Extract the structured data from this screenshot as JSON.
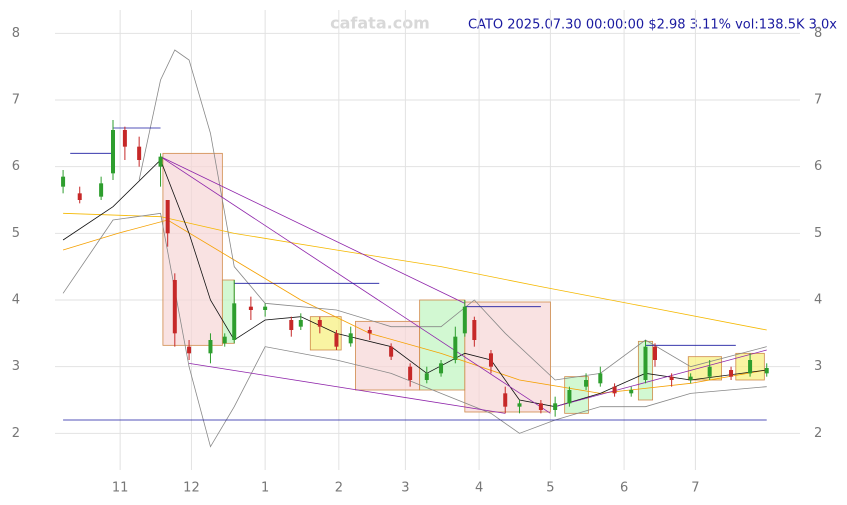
{
  "chart_data": {
    "type": "candlestick",
    "title": "CATO 2025.07.30 00:00:00 $2.98 3.11% vol:138.5K 3.0x",
    "watermark": "cafata.com",
    "up_color": "#2e9e2e",
    "down_color": "#c62828",
    "grid": true,
    "xlim": [
      3.6,
      317
    ],
    "ylim": [
      1.45,
      8.35
    ],
    "xticks": [
      {
        "value": 31,
        "label": "11"
      },
      {
        "value": 61,
        "label": "12"
      },
      {
        "value": 92,
        "label": "1"
      },
      {
        "value": 123,
        "label": "2"
      },
      {
        "value": 151,
        "label": "3"
      },
      {
        "value": 182,
        "label": "4"
      },
      {
        "value": 212,
        "label": "5"
      },
      {
        "value": 243,
        "label": "6"
      },
      {
        "value": 273,
        "label": "7"
      }
    ],
    "yticks": [
      2,
      3,
      4,
      5,
      6,
      7,
      8
    ],
    "x": [
      7,
      14,
      23,
      28,
      33,
      39,
      48,
      51,
      54,
      60,
      69,
      75,
      79,
      86,
      92,
      103,
      107,
      115,
      122,
      128,
      136,
      145,
      153,
      160,
      166,
      172,
      176,
      180,
      187,
      193,
      199,
      208,
      214,
      220,
      227,
      233,
      239,
      246,
      252,
      256,
      263,
      271,
      279,
      288,
      296,
      303
    ],
    "open": [
      5.7,
      5.6,
      5.55,
      5.9,
      6.55,
      6.3,
      6.0,
      5.5,
      4.3,
      3.3,
      3.2,
      3.35,
      3.4,
      3.9,
      3.85,
      3.7,
      3.6,
      3.7,
      3.5,
      3.35,
      3.55,
      3.3,
      3.0,
      2.8,
      2.9,
      3.1,
      3.5,
      3.7,
      3.2,
      2.6,
      2.4,
      2.45,
      2.35,
      2.45,
      2.7,
      2.75,
      2.7,
      2.6,
      2.8,
      3.3,
      2.85,
      2.8,
      2.85,
      2.95,
      2.9,
      2.9
    ],
    "high": [
      5.95,
      5.7,
      5.85,
      6.7,
      6.6,
      6.45,
      6.2,
      5.5,
      4.4,
      3.4,
      3.5,
      3.5,
      4.3,
      4.05,
      3.95,
      3.75,
      3.8,
      3.75,
      3.55,
      3.6,
      3.6,
      3.35,
      3.05,
      3.0,
      3.1,
      3.6,
      4.0,
      3.75,
      3.25,
      2.7,
      2.5,
      2.5,
      2.55,
      2.7,
      2.9,
      3.0,
      2.75,
      2.7,
      3.4,
      3.35,
      2.9,
      2.9,
      3.1,
      3.0,
      3.2,
      3.05
    ],
    "low": [
      5.6,
      5.45,
      5.5,
      5.8,
      6.1,
      6.0,
      5.7,
      4.8,
      3.3,
      3.1,
      3.05,
      3.3,
      3.35,
      3.7,
      3.75,
      3.45,
      3.55,
      3.5,
      3.25,
      3.3,
      3.4,
      3.1,
      2.7,
      2.75,
      2.85,
      3.05,
      3.45,
      3.3,
      2.9,
      2.3,
      2.3,
      2.3,
      2.25,
      2.4,
      2.65,
      2.7,
      2.55,
      2.55,
      2.75,
      3.0,
      2.7,
      2.75,
      2.8,
      2.8,
      2.85,
      2.85
    ],
    "close": [
      5.85,
      5.5,
      5.75,
      6.55,
      6.3,
      6.1,
      6.15,
      5.0,
      3.5,
      3.2,
      3.4,
      3.45,
      3.95,
      3.85,
      3.9,
      3.55,
      3.7,
      3.6,
      3.3,
      3.5,
      3.5,
      3.15,
      2.8,
      2.9,
      3.05,
      3.45,
      3.9,
      3.4,
      3.0,
      2.4,
      2.45,
      2.35,
      2.45,
      2.65,
      2.8,
      2.9,
      2.6,
      2.65,
      3.3,
      3.1,
      2.8,
      2.85,
      3.0,
      2.85,
      3.1,
      2.98
    ],
    "boxes": [
      {
        "x": [
          49,
          74
        ],
        "y": [
          3.32,
          6.2
        ],
        "color": "#f7d6d6"
      },
      {
        "x": [
          74,
          79
        ],
        "y": [
          3.35,
          4.3
        ],
        "color": "#bff5bf"
      },
      {
        "x": [
          111,
          124
        ],
        "y": [
          3.25,
          3.75
        ],
        "color": "#f7f07a"
      },
      {
        "x": [
          130,
          157
        ],
        "y": [
          2.65,
          3.68
        ],
        "color": "#f7d6d6"
      },
      {
        "x": [
          157,
          176
        ],
        "y": [
          2.65,
          4.0
        ],
        "color": "#bff5bf"
      },
      {
        "x": [
          176,
          212
        ],
        "y": [
          2.32,
          3.97
        ],
        "color": "#f7d6d6"
      },
      {
        "x": [
          218,
          228
        ],
        "y": [
          2.3,
          2.85
        ],
        "color": "#bff5bf"
      },
      {
        "x": [
          249,
          255
        ],
        "y": [
          2.5,
          3.38
        ],
        "color": "#bff5bf"
      },
      {
        "x": [
          270,
          284
        ],
        "y": [
          2.8,
          3.15
        ],
        "color": "#f7f07a"
      },
      {
        "x": [
          290,
          302
        ],
        "y": [
          2.8,
          3.2
        ],
        "color": "#f7f07a"
      }
    ],
    "lines": [
      {
        "color": "#f5b800",
        "x": [
          7,
          48,
          79,
          122,
          166,
          208,
          252,
          303
        ],
        "values": [
          5.3,
          5.25,
          5.0,
          4.75,
          4.5,
          4.2,
          3.9,
          3.55
        ]
      },
      {
        "color": "#f5a000",
        "x": [
          7,
          30,
          51,
          79,
          107,
          136,
          166,
          199,
          233,
          271,
          303
        ],
        "values": [
          4.75,
          5.0,
          5.2,
          4.6,
          4.0,
          3.5,
          3.2,
          2.8,
          2.6,
          2.75,
          2.95
        ]
      },
      {
        "color": "#111111",
        "x": [
          7,
          28,
          48,
          60,
          69,
          79,
          92,
          107,
          122,
          145,
          160,
          176,
          187,
          199,
          214,
          233,
          252,
          271,
          303
        ],
        "values": [
          4.9,
          5.4,
          6.1,
          5.0,
          4.0,
          3.4,
          3.7,
          3.75,
          3.5,
          3.3,
          2.9,
          3.2,
          3.1,
          2.5,
          2.4,
          2.6,
          2.9,
          2.8,
          2.95
        ]
      },
      {
        "color": "#888888",
        "x": [
          39,
          48,
          54,
          60,
          69,
          79,
          92,
          122,
          145,
          166,
          180,
          193,
          214,
          233,
          252,
          271,
          303
        ],
        "values": [
          5.8,
          7.3,
          7.75,
          7.6,
          6.5,
          4.5,
          3.95,
          3.85,
          3.6,
          3.6,
          4.0,
          3.5,
          2.8,
          2.9,
          3.4,
          3.0,
          3.3
        ]
      },
      {
        "color": "#888888",
        "x": [
          7,
          28,
          48,
          60,
          69,
          79,
          92,
          122,
          145,
          166,
          187,
          199,
          214,
          233,
          252,
          271,
          303
        ],
        "values": [
          4.1,
          5.2,
          5.3,
          3.0,
          1.8,
          2.4,
          3.3,
          3.1,
          2.9,
          2.6,
          2.3,
          2.0,
          2.2,
          2.4,
          2.4,
          2.6,
          2.7
        ]
      }
    ],
    "trendlines": [
      {
        "color": "#8e24aa",
        "x": [
          48,
          212
        ],
        "y": [
          6.15,
          2.3
        ]
      },
      {
        "color": "#8e24aa",
        "x": [
          48,
          176
        ],
        "y": [
          6.15,
          3.95
        ]
      },
      {
        "color": "#8e24aa",
        "x": [
          60,
          193
        ],
        "y": [
          3.05,
          2.3
        ]
      },
      {
        "color": "#8e24aa",
        "x": [
          214,
          303
        ],
        "y": [
          2.4,
          3.25
        ]
      },
      {
        "color": "#1a1aa0",
        "x": [
          10,
          28
        ],
        "y": [
          6.2,
          6.2
        ]
      },
      {
        "color": "#1a1aa0",
        "x": [
          28,
          48
        ],
        "y": [
          6.58,
          6.58
        ]
      },
      {
        "color": "#1a1aa0",
        "x": [
          79,
          140
        ],
        "y": [
          4.25,
          4.25
        ]
      },
      {
        "color": "#1a1aa0",
        "x": [
          176,
          208
        ],
        "y": [
          3.9,
          3.9
        ]
      },
      {
        "color": "#1a1aa0",
        "x": [
          252,
          290
        ],
        "y": [
          3.32,
          3.32
        ]
      },
      {
        "color": "#1a1aa0",
        "x": [
          7,
          303
        ],
        "y": [
          2.2,
          2.2
        ]
      }
    ]
  }
}
